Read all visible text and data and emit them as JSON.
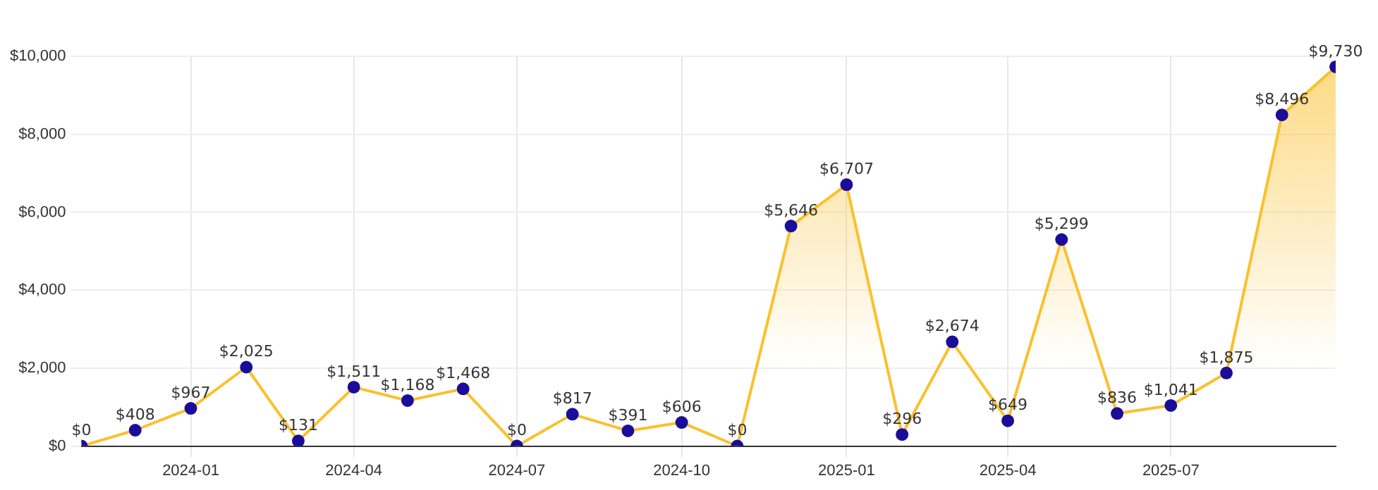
{
  "chart_data": {
    "type": "area",
    "x": [
      "2023-11",
      "2023-12",
      "2024-01",
      "2024-02",
      "2024-03",
      "2024-04",
      "2024-05",
      "2024-06",
      "2024-07",
      "2024-08",
      "2024-09",
      "2024-10",
      "2024-11",
      "2024-12",
      "2025-01",
      "2025-02",
      "2025-03",
      "2025-04",
      "2025-05",
      "2025-06",
      "2025-07",
      "2025-08",
      "2025-09",
      "2025-10"
    ],
    "series": [
      {
        "color": "#fbc02d",
        "values": [
          0,
          408,
          967,
          2025,
          131,
          1511,
          1168,
          1468,
          0,
          817,
          391,
          606,
          0,
          5646,
          6707,
          296,
          2674,
          649,
          5299,
          836,
          1041,
          1875,
          8496,
          9730
        ],
        "value_labels": [
          "$0",
          "$408",
          "$967",
          "$2,025",
          "$131",
          "$1,511",
          "$1,168",
          "$1,468",
          "$0",
          "$817",
          "$391",
          "$606",
          "$0",
          "$5,646",
          "$6,707",
          "$296",
          "$2,674",
          "$649",
          "$5,299",
          "$836",
          "$1,041",
          "$1,875",
          "$8,496",
          "$9,730"
        ]
      }
    ],
    "xlim": [
      "2023-11",
      "2025-10"
    ],
    "xticks": [
      "2024-01",
      "2024-04",
      "2024-07",
      "2024-10",
      "2025-01",
      "2025-04",
      "2025-07"
    ],
    "ylim": [
      0,
      10000
    ],
    "yticks": [
      {
        "value": 0,
        "label": "$0"
      },
      {
        "value": 2000,
        "label": "$2,000"
      },
      {
        "value": 4000,
        "label": "$4,000"
      },
      {
        "value": 6000,
        "label": "$6,000"
      },
      {
        "value": 8000,
        "label": "$8,000"
      },
      {
        "value": 10000,
        "label": "$10,000"
      }
    ],
    "grid": true,
    "marker": "circle",
    "line_style": "solid"
  }
}
